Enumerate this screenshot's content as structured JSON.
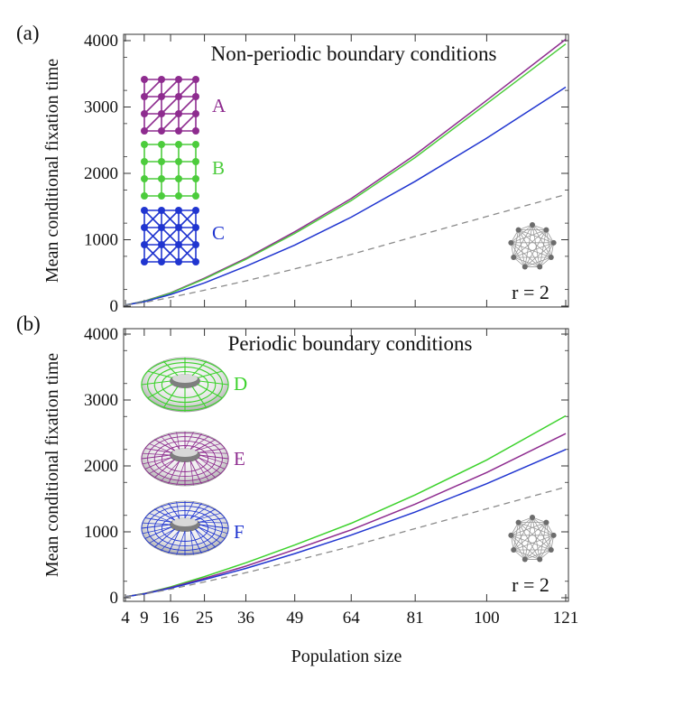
{
  "colors": {
    "A": "#8e2c8f",
    "B": "#4ccc3c",
    "C": "#2035d0",
    "D": "#3cd22c",
    "E": "#8e2c8f",
    "F": "#2035d0",
    "reference": "#8a8a8a"
  },
  "chart_data": [
    {
      "type": "line",
      "panel_label": "(a)",
      "title": "Non-periodic boundary conditions",
      "xlabel": "",
      "ylabel": "Mean conditional fixation time",
      "x": [
        4,
        9,
        16,
        25,
        36,
        49,
        64,
        81,
        100,
        121
      ],
      "xlim": [
        4,
        121
      ],
      "ylim": [
        0,
        4000
      ],
      "yticks": [
        0,
        1000,
        2000,
        3000,
        4000
      ],
      "xticks": [
        4,
        9,
        16,
        25,
        36,
        49,
        64,
        81,
        100,
        121
      ],
      "series": [
        {
          "name": "A",
          "color_key": "A",
          "dashed": false,
          "values": [
            15,
            75,
            200,
            420,
            720,
            1120,
            1620,
            2280,
            3100,
            4020
          ]
        },
        {
          "name": "B",
          "color_key": "B",
          "dashed": false,
          "values": [
            15,
            72,
            195,
            410,
            705,
            1095,
            1590,
            2240,
            3050,
            3950
          ]
        },
        {
          "name": "C",
          "color_key": "C",
          "dashed": false,
          "values": [
            15,
            65,
            175,
            350,
            600,
            920,
            1340,
            1880,
            2530,
            3300
          ]
        },
        {
          "name": "complete graph",
          "color_key": "reference",
          "dashed": true,
          "values": [
            15,
            55,
            130,
            240,
            380,
            560,
            780,
            1050,
            1350,
            1680
          ]
        }
      ],
      "legend": [
        {
          "letter": "A",
          "series": "A"
        },
        {
          "letter": "B",
          "series": "B"
        },
        {
          "letter": "C",
          "series": "C"
        }
      ],
      "annotation": "r = 2"
    },
    {
      "type": "line",
      "panel_label": "(b)",
      "title": "Periodic boundary conditions",
      "xlabel": "Population size",
      "ylabel": "Mean conditional fixation time",
      "x": [
        4,
        9,
        16,
        25,
        36,
        49,
        64,
        81,
        100,
        121
      ],
      "xlim": [
        4,
        121
      ],
      "ylim": [
        0,
        4000
      ],
      "yticks": [
        0,
        1000,
        2000,
        3000,
        4000
      ],
      "xticks": [
        4,
        9,
        16,
        25,
        36,
        49,
        64,
        81,
        100,
        121
      ],
      "xtick_labels": [
        "4",
        "9",
        "16",
        "25",
        "36",
        "49",
        "64",
        "81",
        "100",
        "121"
      ],
      "series": [
        {
          "name": "D",
          "color_key": "D",
          "dashed": false,
          "values": [
            15,
            65,
            165,
            320,
            530,
            800,
            1130,
            1560,
            2090,
            2760
          ]
        },
        {
          "name": "E",
          "color_key": "E",
          "dashed": false,
          "values": [
            15,
            62,
            155,
            295,
            480,
            730,
            1030,
            1420,
            1900,
            2490
          ]
        },
        {
          "name": "F",
          "color_key": "F",
          "dashed": false,
          "values": [
            15,
            58,
            145,
            275,
            445,
            670,
            950,
            1300,
            1730,
            2250
          ]
        },
        {
          "name": "complete graph",
          "color_key": "reference",
          "dashed": true,
          "values": [
            15,
            55,
            130,
            240,
            380,
            560,
            780,
            1050,
            1350,
            1680
          ]
        }
      ],
      "legend": [
        {
          "letter": "D",
          "series": "D"
        },
        {
          "letter": "E",
          "series": "E"
        },
        {
          "letter": "F",
          "series": "F"
        }
      ],
      "annotation": "r = 2"
    }
  ]
}
